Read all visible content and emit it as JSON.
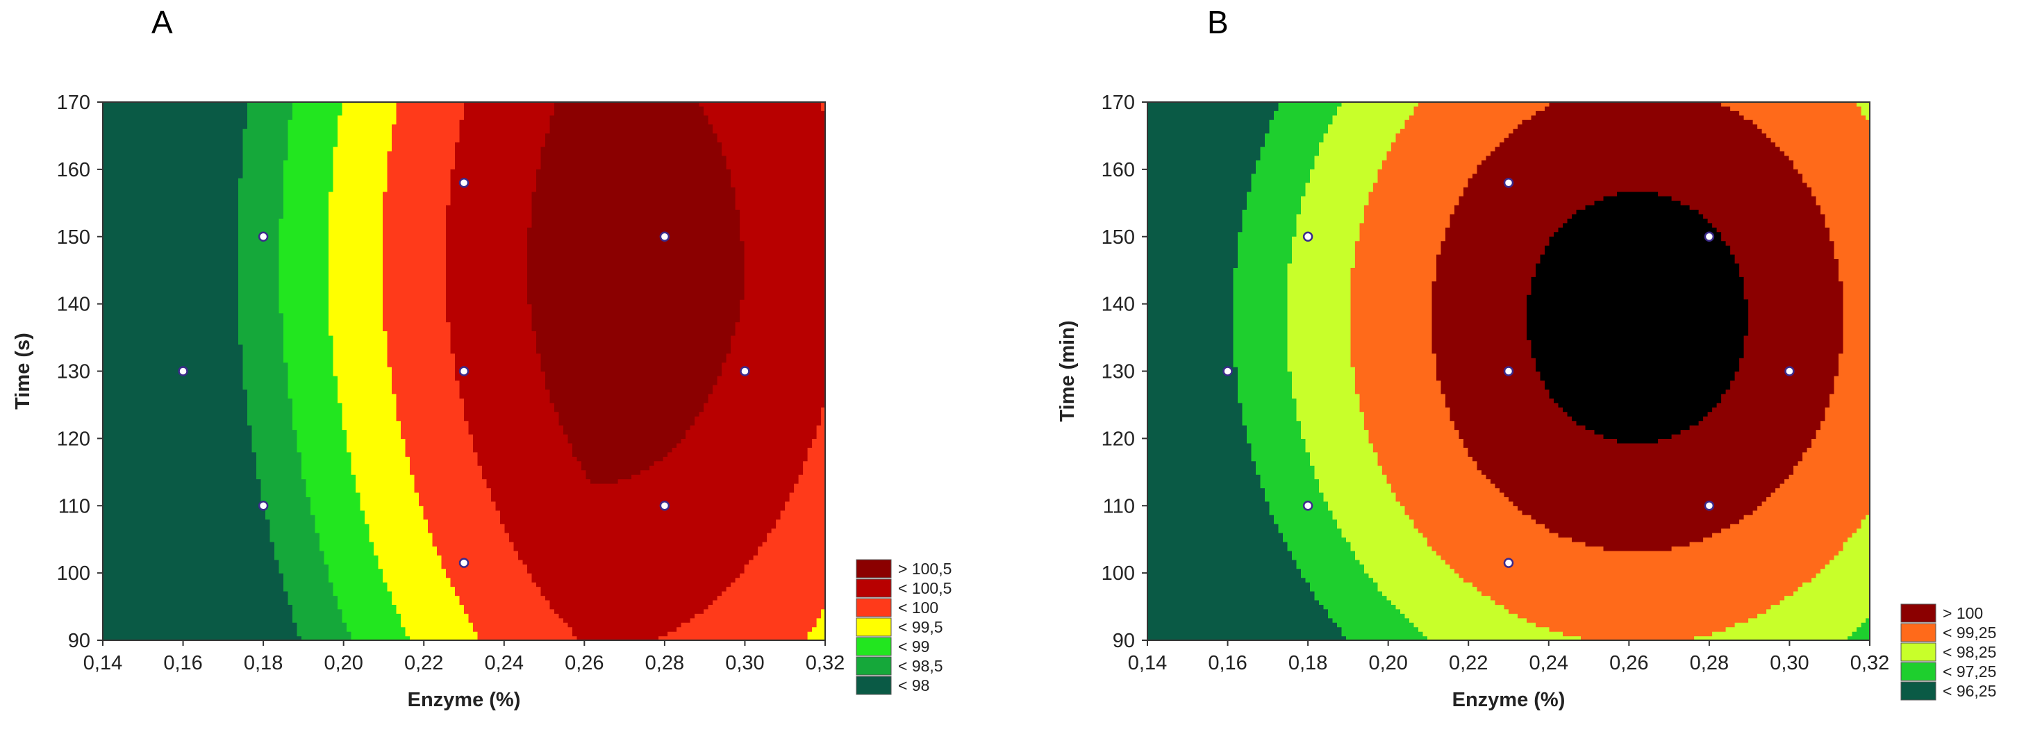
{
  "chart_data": [
    {
      "type": "contour",
      "panel_label": "A",
      "xlabel": "Enzyme (%)",
      "ylabel": "Time (s)",
      "xlim": [
        0.14,
        0.32
      ],
      "ylim": [
        90,
        170
      ],
      "x_ticks": [
        "0,14",
        "0,16",
        "0,18",
        "0,20",
        "0,22",
        "0,24",
        "0,26",
        "0,28",
        "0,30",
        "0,32"
      ],
      "y_ticks": [
        "90",
        "100",
        "110",
        "120",
        "130",
        "140",
        "150",
        "160",
        "170"
      ],
      "surface": {
        "x0": 0.262,
        "y0": 143,
        "ax": 0.115,
        "by": 115,
        "rot_deg": -20,
        "peak": 100.78
      },
      "design_points": [
        {
          "x": 0.16,
          "y": 130
        },
        {
          "x": 0.18,
          "y": 150
        },
        {
          "x": 0.18,
          "y": 110
        },
        {
          "x": 0.23,
          "y": 158
        },
        {
          "x": 0.23,
          "y": 130
        },
        {
          "x": 0.23,
          "y": 101.5
        },
        {
          "x": 0.28,
          "y": 150
        },
        {
          "x": 0.28,
          "y": 110
        },
        {
          "x": 0.3,
          "y": 130
        }
      ],
      "levels": [
        98,
        98.5,
        99,
        99.5,
        100,
        100.5
      ],
      "legend": [
        {
          "label": "> 100,5",
          "color": "#8b0000"
        },
        {
          "label": "< 100,5",
          "color": "#b80000"
        },
        {
          "label": "< 100",
          "color": "#ff3a1a"
        },
        {
          "label": "< 99,5",
          "color": "#ffff00"
        },
        {
          "label": "< 99",
          "color": "#22e61f"
        },
        {
          "label": "< 98,5",
          "color": "#15a83a"
        },
        {
          "label": "< 98",
          "color": "#0a5a45"
        }
      ]
    },
    {
      "type": "contour",
      "panel_label": "B",
      "xlabel": "Enzyme (%)",
      "ylabel": "Time (min)",
      "xlim": [
        0.14,
        0.32
      ],
      "ylim": [
        90,
        170
      ],
      "x_ticks": [
        "0,14",
        "0,16",
        "0,18",
        "0,20",
        "0,22",
        "0,24",
        "0,26",
        "0,28",
        "0,30",
        "0,32"
      ],
      "y_ticks": [
        "90",
        "100",
        "110",
        "120",
        "130",
        "140",
        "150",
        "160",
        "170"
      ],
      "surface": {
        "x0": 0.262,
        "y0": 138,
        "ax": 0.05,
        "by": 34,
        "rot_deg": 0,
        "peak": 100.3
      },
      "design_points": [
        {
          "x": 0.16,
          "y": 130
        },
        {
          "x": 0.18,
          "y": 150
        },
        {
          "x": 0.18,
          "y": 110
        },
        {
          "x": 0.23,
          "y": 158
        },
        {
          "x": 0.23,
          "y": 130
        },
        {
          "x": 0.23,
          "y": 101.5
        },
        {
          "x": 0.28,
          "y": 150
        },
        {
          "x": 0.28,
          "y": 110
        },
        {
          "x": 0.3,
          "y": 130
        }
      ],
      "levels": [
        96.25,
        97.25,
        98.25,
        99.25,
        100
      ],
      "legend": [
        {
          "label": "> 100",
          "color": "#8b0000"
        },
        {
          "label": "< 99,25",
          "color": "#ff6a1a"
        },
        {
          "label": "< 98,25",
          "color": "#c8ff2a"
        },
        {
          "label": "< 97,25",
          "color": "#1ecf2e"
        },
        {
          "label": "< 96,25",
          "color": "#0a5a45"
        }
      ]
    }
  ]
}
